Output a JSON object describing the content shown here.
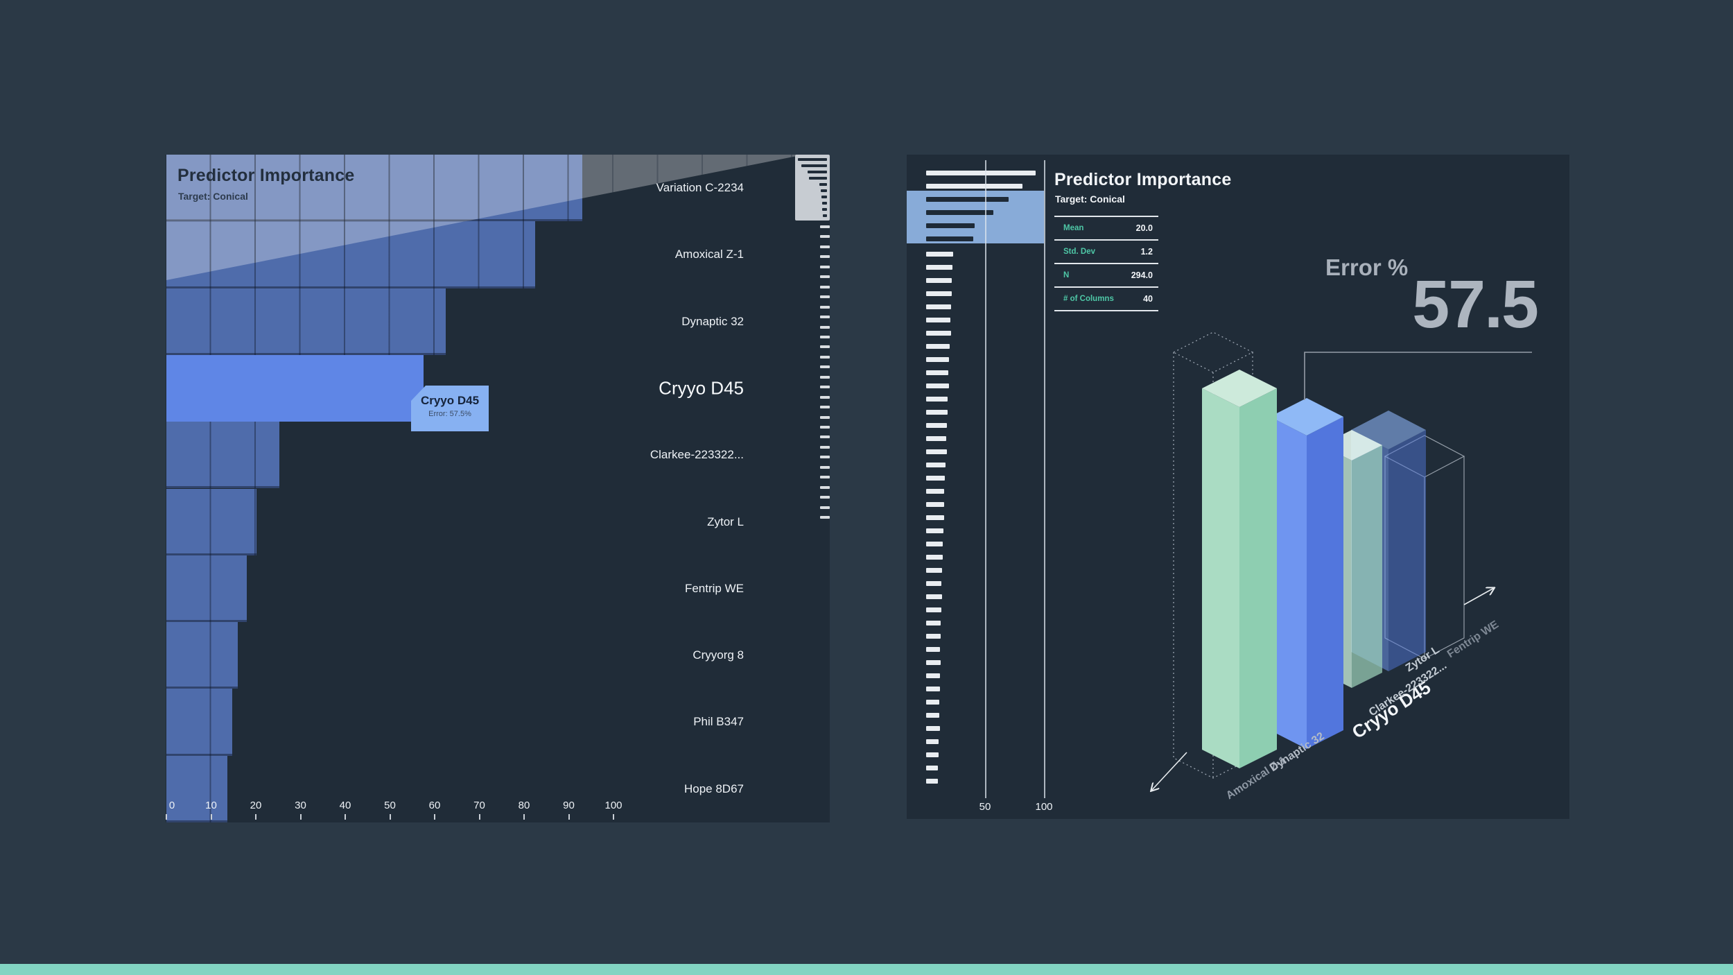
{
  "page": {
    "background": "#2b3946",
    "panel_background": "#202c38",
    "footer_color": "#82d4c2",
    "accent_teal": "#4ec7a6",
    "highlight_blue": "#5f86e6"
  },
  "left_panel": {
    "title": "Predictor Importance",
    "subtitle": "Target: Conical",
    "tooltip": {
      "title": "Cryyo D45",
      "text": "Error: 57.5%"
    }
  },
  "right_panel": {
    "title": "Predictor Importance",
    "subtitle": "Target: Conical",
    "stats": [
      {
        "label": "Mean",
        "value": "20.0"
      },
      {
        "label": "Std. Dev",
        "value": "1.2"
      },
      {
        "label": "N",
        "value": "294.0"
      },
      {
        "label": "# of Columns",
        "value": "40"
      }
    ],
    "error_label": "Error %",
    "error_value": "57.5",
    "overview_axis_labels": [
      "50",
      "100"
    ]
  },
  "chart_data": [
    {
      "type": "bar",
      "orientation": "horizontal",
      "title": "Predictor Importance",
      "subtitle": "Target: Conical",
      "categories": [
        "Variation C-2234",
        "Amoxical Z-1",
        "Dynaptic 32",
        "Cryyo D45",
        "Clarkee-223322...",
        "Zytor L",
        "Fentrip WE",
        "Cryyorg 8",
        "Phil B347",
        "Hope 8D67"
      ],
      "values": [
        93,
        82.5,
        62.5,
        57.5,
        25.3,
        20.2,
        18,
        16,
        14.7,
        13.6
      ],
      "highlight_category": "Cryyo D45",
      "highlight_value": 57.5,
      "xlabel": "",
      "ylabel": "",
      "xlim": [
        0,
        100
      ],
      "x_ticks": [
        0,
        10,
        20,
        30,
        40,
        50,
        60,
        70,
        80,
        90,
        100
      ],
      "grid": true,
      "legend": false
    },
    {
      "type": "bar",
      "name": "overview-minimap",
      "orientation": "horizontal",
      "gridline_values": [
        50,
        100
      ],
      "top_values": [
        93,
        82
      ],
      "viewport_values": [
        70,
        57,
        41,
        40
      ],
      "tail_values": [
        23,
        22.5,
        22,
        21.5,
        21,
        20.5,
        21,
        20,
        19.5,
        19,
        19.5,
        18.5,
        18,
        17.5,
        17,
        17.5,
        16.5,
        16,
        15.5,
        15,
        15.5,
        14.5,
        14,
        14,
        13.5,
        13,
        13.5,
        12.8,
        12.5,
        12.2,
        12,
        12.5,
        11.8,
        11.5,
        11.2,
        11,
        11.5,
        10.8,
        10.5,
        10.2,
        10
      ]
    },
    {
      "type": "bar",
      "name": "error-3d",
      "categories": [
        "Amoxical Z-1",
        "Dynaptic 32",
        "Cryyo D45",
        "Clarkee-223322...",
        "Zytor L",
        "Fentrip WE"
      ],
      "values": [
        82.5,
        62.5,
        57.5,
        25.3,
        20.2,
        18
      ],
      "highlight_category": "Cryyo D45",
      "error_pct": 57.5,
      "styles": [
        "wireframe-dotted",
        "solid-mint",
        "solid-blue-highlight",
        "ghost-mint",
        "ghost-blue",
        "wireframe-line"
      ]
    }
  ]
}
